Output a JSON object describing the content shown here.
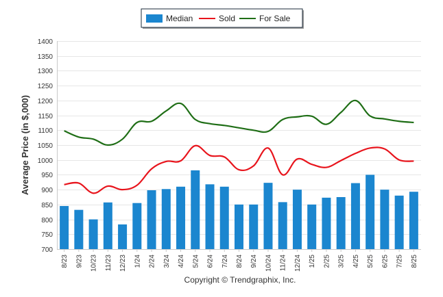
{
  "chart_data": {
    "type": "bar",
    "ylabel": "Average Price (in $,000)",
    "ylim": [
      700,
      1400
    ],
    "yticks": [
      700,
      750,
      800,
      850,
      900,
      950,
      1000,
      1050,
      1100,
      1150,
      1200,
      1250,
      1300,
      1350,
      1400
    ],
    "grid": true,
    "legend_position": "top-center",
    "categories": [
      "8/23",
      "9/23",
      "10/23",
      "11/23",
      "12/23",
      "1/24",
      "2/24",
      "3/24",
      "4/24",
      "5/24",
      "6/24",
      "7/24",
      "8/24",
      "9/24",
      "10/24",
      "11/24",
      "12/24",
      "1/25",
      "2/25",
      "3/25",
      "4/25",
      "5/25",
      "6/25",
      "7/25",
      "8/25"
    ],
    "series": [
      {
        "name": "Median",
        "type": "bar",
        "color": "#1b86cf",
        "values": [
          845,
          832,
          800,
          857,
          783,
          855,
          898,
          902,
          910,
          965,
          918,
          910,
          850,
          850,
          923,
          858,
          900,
          850,
          873,
          875,
          922,
          950,
          900,
          880,
          893
        ]
      },
      {
        "name": "Sold",
        "type": "line",
        "color": "#e8141c",
        "values": [
          917,
          922,
          888,
          912,
          900,
          915,
          970,
          995,
          997,
          1048,
          1015,
          1010,
          967,
          980,
          1040,
          950,
          1003,
          985,
          975,
          998,
          1022,
          1040,
          1037,
          1000,
          996
        ]
      },
      {
        "name": "For Sale",
        "type": "line",
        "color": "#1f6e16",
        "values": [
          1098,
          1077,
          1070,
          1050,
          1070,
          1126,
          1130,
          1165,
          1190,
          1136,
          1122,
          1116,
          1108,
          1100,
          1096,
          1136,
          1145,
          1147,
          1120,
          1160,
          1200,
          1148,
          1138,
          1130,
          1126
        ]
      }
    ]
  },
  "footer": {
    "copyright": "Copyright © Trendgraphix, Inc."
  }
}
